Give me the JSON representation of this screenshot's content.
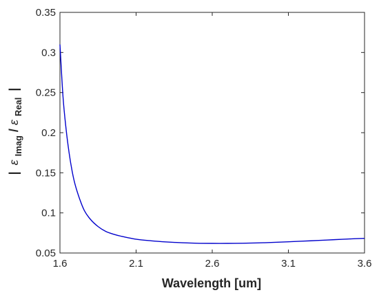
{
  "chart_data": {
    "type": "line",
    "xlabel": "Wavelength [um]",
    "ylabel": {
      "bar_left": "|",
      "eps1": "ε",
      "sub1": "Imag",
      "slash": " / ",
      "eps2": "ε",
      "sub2": "Real",
      "bar_right": "|"
    },
    "xlim": [
      1.6,
      3.6
    ],
    "ylim": [
      0.05,
      0.35
    ],
    "xticks": [
      1.6,
      2.1,
      2.6,
      3.1,
      3.6
    ],
    "xtick_labels": [
      "1.6",
      "2.1",
      "2.6",
      "3.1",
      "3.6"
    ],
    "yticks": [
      0.05,
      0.1,
      0.15,
      0.2,
      0.25,
      0.3,
      0.35
    ],
    "ytick_labels": [
      "0.05",
      "0.1",
      "0.15",
      "0.2",
      "0.25",
      "0.3",
      "0.35"
    ],
    "grid": false,
    "box": true,
    "series": [
      {
        "color": "#0000cc",
        "x": [
          1.6,
          1.62,
          1.64,
          1.66,
          1.68,
          1.7,
          1.73,
          1.76,
          1.8,
          1.85,
          1.9,
          1.95,
          2.0,
          2.1,
          2.2,
          2.3,
          2.4,
          2.5,
          2.6,
          2.7,
          2.8,
          2.9,
          3.0,
          3.1,
          3.2,
          3.3,
          3.4,
          3.5,
          3.6
        ],
        "y": [
          0.31,
          0.245,
          0.205,
          0.175,
          0.152,
          0.135,
          0.117,
          0.103,
          0.092,
          0.083,
          0.077,
          0.0735,
          0.071,
          0.0672,
          0.0652,
          0.0638,
          0.0628,
          0.0622,
          0.062,
          0.062,
          0.0622,
          0.0626,
          0.0632,
          0.064,
          0.0648,
          0.0657,
          0.0666,
          0.0675,
          0.0683
        ]
      }
    ]
  }
}
